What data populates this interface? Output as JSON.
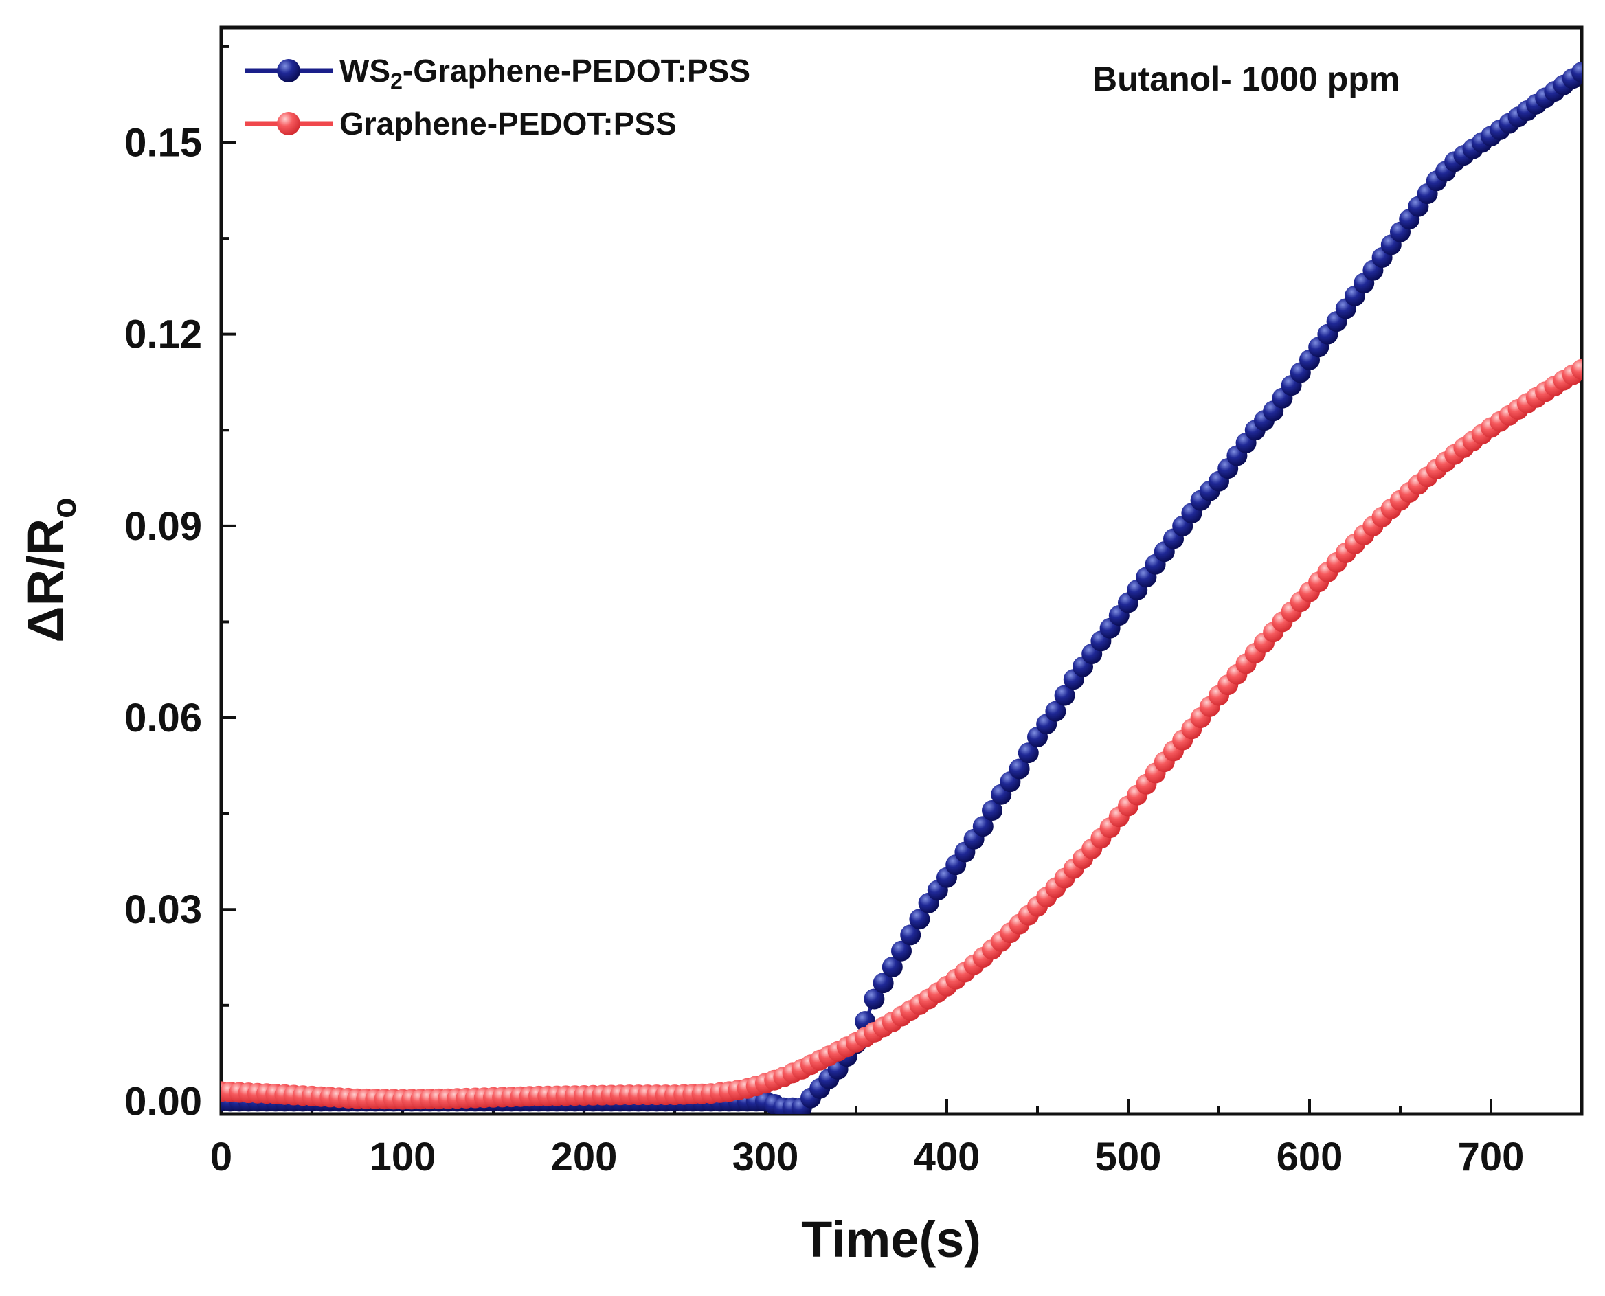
{
  "chart_data": {
    "type": "scatter",
    "title": "",
    "xlabel": "Time(s)",
    "ylabel": "ΔR/R",
    "ylabel_sub": "o",
    "xlim": [
      0,
      750
    ],
    "ylim": [
      -0.002,
      0.168
    ],
    "xticks": [
      0,
      100,
      200,
      300,
      400,
      500,
      600,
      700
    ],
    "xtick_labels": [
      "0",
      "100",
      "200",
      "300",
      "400",
      "500",
      "600",
      "700"
    ],
    "yticks": [
      0.0,
      0.03,
      0.06,
      0.09,
      0.12,
      0.15
    ],
    "ytick_labels": [
      "0.00",
      "0.03",
      "0.06",
      "0.09",
      "0.12",
      "0.15"
    ],
    "grid": false,
    "legend_position": "top-left",
    "annotation": "Butanol- 1000 ppm",
    "series": [
      {
        "name": "WS2-Graphene-PEDOT:PSS",
        "legend_main": "WS",
        "legend_sub": "2",
        "legend_rest": "-Graphene-PEDOT:PSS",
        "color": "#1a1f8a",
        "x": [
          0,
          50,
          100,
          150,
          200,
          250,
          280,
          300,
          310,
          320,
          330,
          340,
          350,
          360,
          370,
          380,
          390,
          400,
          410,
          420,
          430,
          440,
          450,
          460,
          470,
          480,
          490,
          500,
          510,
          520,
          530,
          540,
          550,
          560,
          570,
          580,
          590,
          600,
          610,
          620,
          630,
          640,
          650,
          660,
          670,
          680,
          690,
          700,
          710,
          720,
          730,
          740,
          750
        ],
        "y": [
          0.0,
          0.0,
          0.0,
          0.0,
          0.0,
          0.0,
          0.0,
          0.0,
          -0.001,
          -0.001,
          0.002,
          0.005,
          0.009,
          0.016,
          0.021,
          0.026,
          0.031,
          0.035,
          0.039,
          0.043,
          0.048,
          0.052,
          0.057,
          0.061,
          0.066,
          0.07,
          0.074,
          0.078,
          0.082,
          0.086,
          0.09,
          0.094,
          0.097,
          0.101,
          0.105,
          0.108,
          0.112,
          0.116,
          0.12,
          0.124,
          0.128,
          0.132,
          0.136,
          0.14,
          0.144,
          0.147,
          0.149,
          0.151,
          0.153,
          0.155,
          0.157,
          0.159,
          0.161
        ]
      },
      {
        "name": "Graphene-PEDOT:PSS",
        "color": "#f0484c",
        "x": [
          0,
          25,
          50,
          75,
          100,
          125,
          150,
          175,
          200,
          225,
          250,
          270,
          280,
          290,
          300,
          310,
          320,
          330,
          340,
          350,
          360,
          370,
          380,
          390,
          400,
          410,
          420,
          430,
          440,
          450,
          460,
          470,
          480,
          490,
          500,
          510,
          520,
          530,
          540,
          550,
          560,
          570,
          580,
          590,
          600,
          610,
          620,
          630,
          640,
          650,
          660,
          670,
          680,
          690,
          700,
          710,
          720,
          730,
          740,
          750
        ],
        "y": [
          0.0015,
          0.0012,
          0.0008,
          0.0004,
          0.0003,
          0.0004,
          0.0006,
          0.0008,
          0.0009,
          0.001,
          0.001,
          0.0012,
          0.0015,
          0.002,
          0.0028,
          0.0038,
          0.005,
          0.0064,
          0.0078,
          0.0092,
          0.0108,
          0.0124,
          0.0142,
          0.016,
          0.018,
          0.0202,
          0.0225,
          0.025,
          0.0277,
          0.0305,
          0.0334,
          0.0364,
          0.0395,
          0.0428,
          0.0462,
          0.0496,
          0.0531,
          0.0565,
          0.06,
          0.0635,
          0.0668,
          0.0701,
          0.0734,
          0.0766,
          0.0797,
          0.0828,
          0.0858,
          0.0886,
          0.0914,
          0.094,
          0.0965,
          0.0989,
          0.1012,
          0.1033,
          0.1054,
          0.1073,
          0.1092,
          0.111,
          0.1128,
          0.1145
        ]
      }
    ]
  }
}
